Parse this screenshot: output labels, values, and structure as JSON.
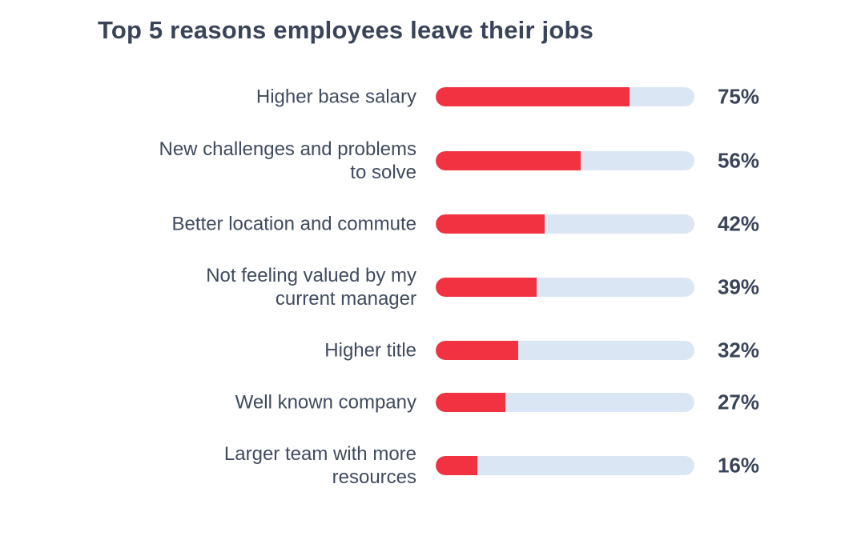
{
  "chart_data": {
    "type": "bar",
    "orientation": "horizontal",
    "title": "Top 5 reasons employees leave their jobs",
    "xlim": [
      0,
      100
    ],
    "grid": false,
    "categories": [
      "Higher base salary",
      "New challenges and problems\nto solve",
      "Better location and commute",
      "Not feeling valued by my\ncurrent manager",
      "Higher title",
      "Well known company",
      "Larger team with more\nresources"
    ],
    "values": [
      75,
      56,
      42,
      39,
      32,
      27,
      16
    ],
    "value_labels": [
      "75%",
      "56%",
      "42%",
      "39%",
      "32%",
      "27%",
      "16%"
    ],
    "colors": {
      "fill": "#f23241",
      "track": "#dbe6f5",
      "text": "#3a4459"
    }
  }
}
